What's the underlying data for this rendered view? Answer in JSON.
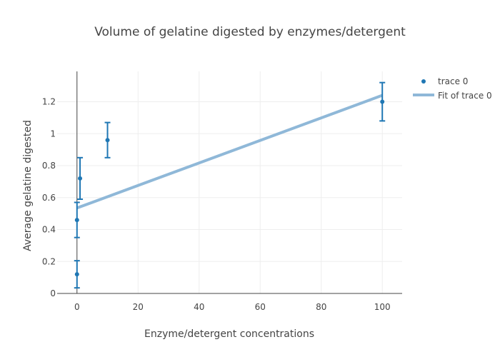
{
  "chart_data": {
    "type": "scatter",
    "title": "Volume of gelatine digested by enzymes/detergent",
    "xlabel": "Enzyme/detergent concentrations",
    "ylabel": "Average gelatine digested",
    "xlim": [
      -6.5,
      106.5
    ],
    "ylim": [
      0,
      1.39
    ],
    "x_ticks": [
      0,
      20,
      40,
      60,
      80,
      100
    ],
    "y_ticks": [
      0,
      0.2,
      0.4,
      0.6,
      0.8,
      1,
      1.2
    ],
    "x_tick_labels": [
      "0",
      "20",
      "40",
      "60",
      "80",
      "100"
    ],
    "y_tick_labels": [
      "0",
      "0.2",
      "0.4",
      "0.6",
      "0.8",
      "1",
      "1.2"
    ],
    "grid": true,
    "legend_position": "top-right",
    "series": [
      {
        "name": "trace 0",
        "kind": "markers",
        "color": "#1f77b4",
        "x": [
          0,
          0,
          1,
          10,
          100
        ],
        "y": [
          0.12,
          0.46,
          0.72,
          0.96,
          1.2
        ],
        "error_y": [
          0.085,
          0.11,
          0.13,
          0.11,
          0.12
        ]
      },
      {
        "name": "Fit of trace 0",
        "kind": "line",
        "color": "#8fb8d8",
        "x": [
          0,
          100
        ],
        "y": [
          0.535,
          1.24
        ]
      }
    ]
  }
}
